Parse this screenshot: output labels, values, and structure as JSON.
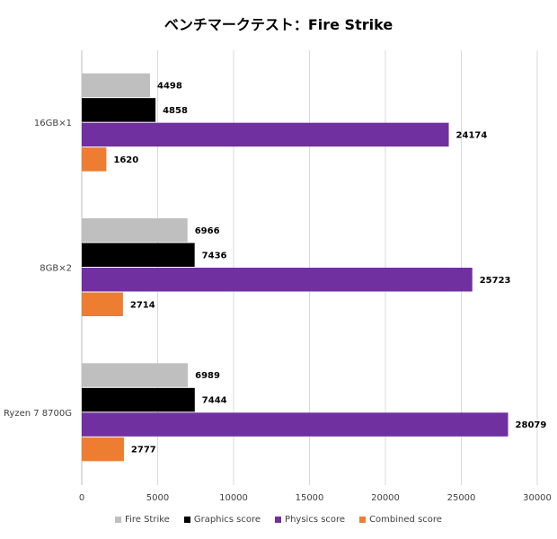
{
  "chart_data": {
    "type": "bar",
    "orientation": "horizontal",
    "title": "ベンチマークテスト：Fire Strike",
    "categories": [
      "16GB×1",
      "8GB×2",
      "Ryzen 7 8700G"
    ],
    "series": [
      {
        "name": "Fire Strike",
        "color": "#bfbfbf",
        "values": [
          4498,
          6966,
          6989
        ]
      },
      {
        "name": "Graphics score",
        "color": "#000000",
        "values": [
          4858,
          7436,
          7444
        ]
      },
      {
        "name": "Physics score",
        "color": "#7030a0",
        "values": [
          24174,
          25723,
          28079
        ]
      },
      {
        "name": "Combined score",
        "color": "#ed7d31",
        "values": [
          1620,
          2714,
          2777
        ]
      }
    ],
    "xlim": [
      0,
      30000
    ],
    "xticks": [
      0,
      5000,
      10000,
      15000,
      20000,
      25000,
      30000
    ],
    "xtick_labels": [
      "0",
      "5000",
      "10000",
      "15000",
      "20000",
      "25000",
      "30000"
    ],
    "grid": "vertical",
    "legend_position": "bottom",
    "data_labels": true
  }
}
